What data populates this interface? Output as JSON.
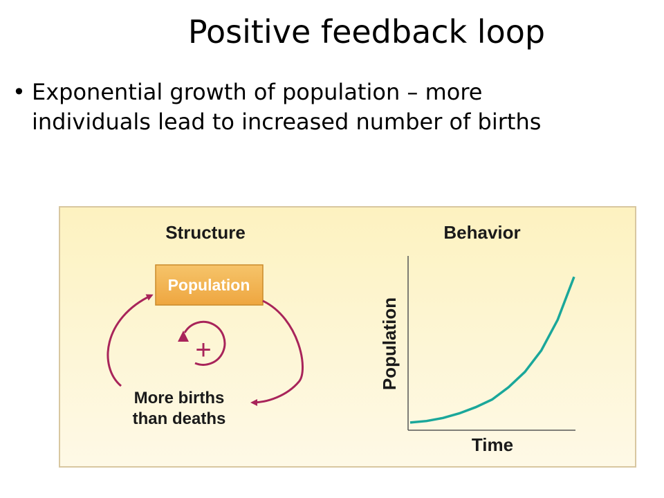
{
  "slide": {
    "title": "Positive feedback loop",
    "bullets": [
      {
        "line1": "Exponential growth of population – more",
        "line2": "individuals lead to increased number of births"
      }
    ]
  },
  "figure": {
    "structure_heading": "Structure",
    "behavior_heading": "Behavior",
    "stock_label": "Population",
    "loop_polarity": "+",
    "flow_label_line1": "More births",
    "flow_label_line2": "than deaths",
    "graph_ylabel": "Population",
    "graph_xlabel": "Time",
    "colors": {
      "stock_fill": "#f0b04a",
      "arrow": "#a8245a",
      "curve": "#1aa79a"
    }
  },
  "chart_data": {
    "type": "line",
    "title": "Behavior",
    "xlabel": "Time",
    "ylabel": "Population",
    "series": [
      {
        "x": [
          0,
          0.1,
          0.2,
          0.3,
          0.4,
          0.5,
          0.6,
          0.7,
          0.8,
          0.9,
          1.0
        ],
        "y": [
          0.05,
          0.06,
          0.08,
          0.11,
          0.15,
          0.2,
          0.28,
          0.38,
          0.52,
          0.72,
          1.0
        ]
      }
    ],
    "xlim": [
      0,
      1
    ],
    "ylim": [
      0,
      1.1
    ],
    "grid": false
  }
}
